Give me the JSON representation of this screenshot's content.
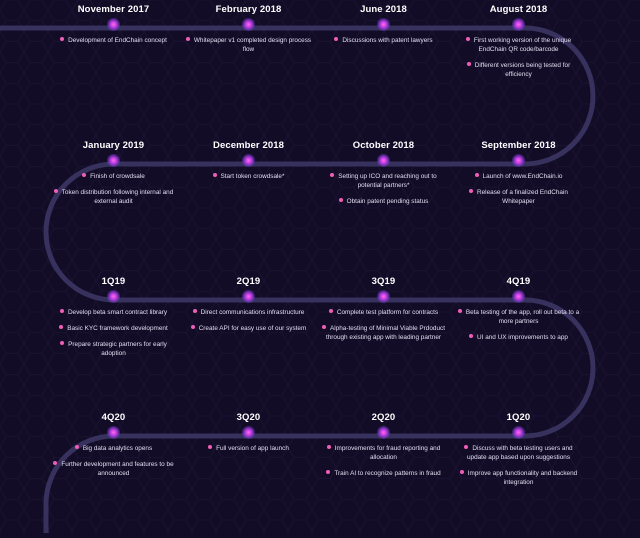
{
  "roadmap": {
    "rows": [
      {
        "milestones": [
          {
            "date": "November 2017",
            "items": [
              "Development of EndChain concept"
            ]
          },
          {
            "date": "February 2018",
            "items": [
              "Whitepaper v1 completed design process flow"
            ]
          },
          {
            "date": "June 2018",
            "items": [
              "Discussions with patent lawyers"
            ]
          },
          {
            "date": "August 2018",
            "items": [
              "First working version of the unique EndChain QR code/barcode",
              "Different versions being tested for efficiency"
            ]
          }
        ]
      },
      {
        "milestones": [
          {
            "date": "January 2019",
            "items": [
              "Finish of crowdsale",
              "Token distribution following internal and external audit"
            ]
          },
          {
            "date": "December 2018",
            "items": [
              "Start token crowdsale*"
            ]
          },
          {
            "date": "October 2018",
            "items": [
              "Setting up ICO and reaching out to potential partners*",
              "Obtain patent pending status"
            ]
          },
          {
            "date": "September 2018",
            "items": [
              "Launch of www.EndChain.io",
              "Release of a finalized EndChain Whitepaper"
            ]
          }
        ]
      },
      {
        "milestones": [
          {
            "date": "1Q19",
            "items": [
              "Develop beta smart contract library",
              "Basic KYC framework development",
              "Prepare strategic partners for early adoption"
            ]
          },
          {
            "date": "2Q19",
            "items": [
              "Direct communications infrastructure",
              "Create API for easy use of our system"
            ]
          },
          {
            "date": "3Q19",
            "items": [
              "Complete test platform for contracts",
              "Alpha-testing of Minimal Viable Prdoduct through existing app with leading partner"
            ]
          },
          {
            "date": "4Q19",
            "items": [
              "Beta testing of the app, roll out beta to a more partners",
              "UI and UX improvements to app"
            ]
          }
        ]
      },
      {
        "milestones": [
          {
            "date": "4Q20",
            "items": [
              "Big data analytics opens",
              "Further development and features to be announced"
            ]
          },
          {
            "date": "3Q20",
            "items": [
              "Full version of app launch"
            ]
          },
          {
            "date": "2Q20",
            "items": [
              "Improvements for fraud reporting and allocation",
              "Train AI to recognize patterns in fraud"
            ]
          },
          {
            "date": "1Q20",
            "items": [
              "Discuss with beta testing users and update app based upon suggestions",
              "Improve app functionality and backend integration"
            ]
          }
        ]
      }
    ]
  },
  "colors": {
    "background": "#120c26",
    "line": "#3c3564",
    "node": "#d45cf0",
    "bullet": "#f05db7",
    "text": "#e2dcf2"
  }
}
